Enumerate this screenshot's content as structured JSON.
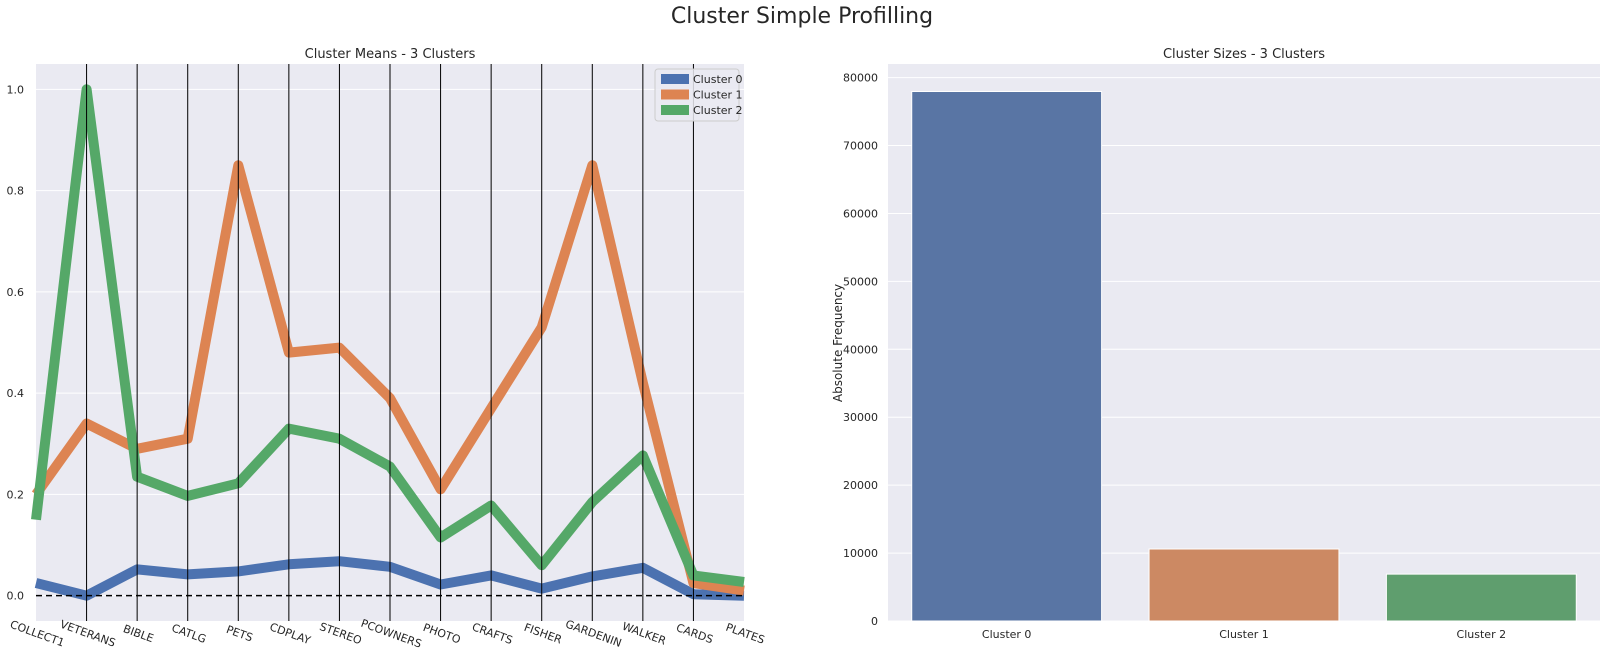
{
  "figure": {
    "suptitle": "Cluster Simple Profilling"
  },
  "colors": {
    "cluster0": "#4c72b0",
    "cluster1": "#dd8452",
    "cluster2": "#55a868",
    "panel": "#eaeaf2",
    "grid": "#ffffff"
  },
  "chart_data": [
    {
      "type": "line",
      "title": "Cluster Means - 3 Clusters",
      "xlabel": "",
      "ylabel": "",
      "categories": [
        "COLLECT1",
        "VETERANS",
        "BIBLE",
        "CATLG",
        "PETS",
        "CDPLAY",
        "STEREO",
        "PCOWNERS",
        "PHOTO",
        "CRAFTS",
        "FISHER",
        "GARDENIN",
        "WALKER",
        "CARDS",
        "PLATES"
      ],
      "yticks": [
        "0.0",
        "0.2",
        "0.4",
        "0.6",
        "0.8",
        "1.0"
      ],
      "ylim": [
        -0.05,
        1.05
      ],
      "series": [
        {
          "name": "Cluster 0",
          "color": "#4c72b0",
          "values": [
            0.025,
            0.0,
            0.052,
            0.042,
            0.048,
            0.062,
            0.068,
            0.057,
            0.022,
            0.04,
            0.014,
            0.038,
            0.055,
            0.003,
            0.0
          ]
        },
        {
          "name": "Cluster 1",
          "color": "#dd8452",
          "values": [
            0.2,
            0.34,
            0.29,
            0.31,
            0.85,
            0.48,
            0.49,
            0.39,
            0.21,
            0.37,
            0.53,
            0.85,
            0.42,
            0.025,
            0.01
          ]
        },
        {
          "name": "Cluster 2",
          "color": "#55a868",
          "values": [
            0.15,
            1.0,
            0.235,
            0.197,
            0.222,
            0.33,
            0.31,
            0.255,
            0.115,
            0.178,
            0.06,
            0.185,
            0.277,
            0.04,
            0.027
          ]
        }
      ],
      "reference_line": 0.0,
      "legend": "top-right",
      "grid": true
    },
    {
      "type": "bar",
      "title": "Cluster Sizes - 3 Clusters",
      "xlabel": "",
      "ylabel": "Absolute Frequency",
      "categories": [
        "Cluster 0",
        "Cluster 1",
        "Cluster 2"
      ],
      "values": [
        77950,
        10600,
        6900
      ],
      "colors": [
        "#5975a4",
        "#cc8963",
        "#5f9e6e"
      ],
      "yticks": [
        "0",
        "10000",
        "20000",
        "30000",
        "40000",
        "50000",
        "60000",
        "70000",
        "80000"
      ],
      "ylim": [
        0,
        82000
      ],
      "grid": true
    }
  ]
}
